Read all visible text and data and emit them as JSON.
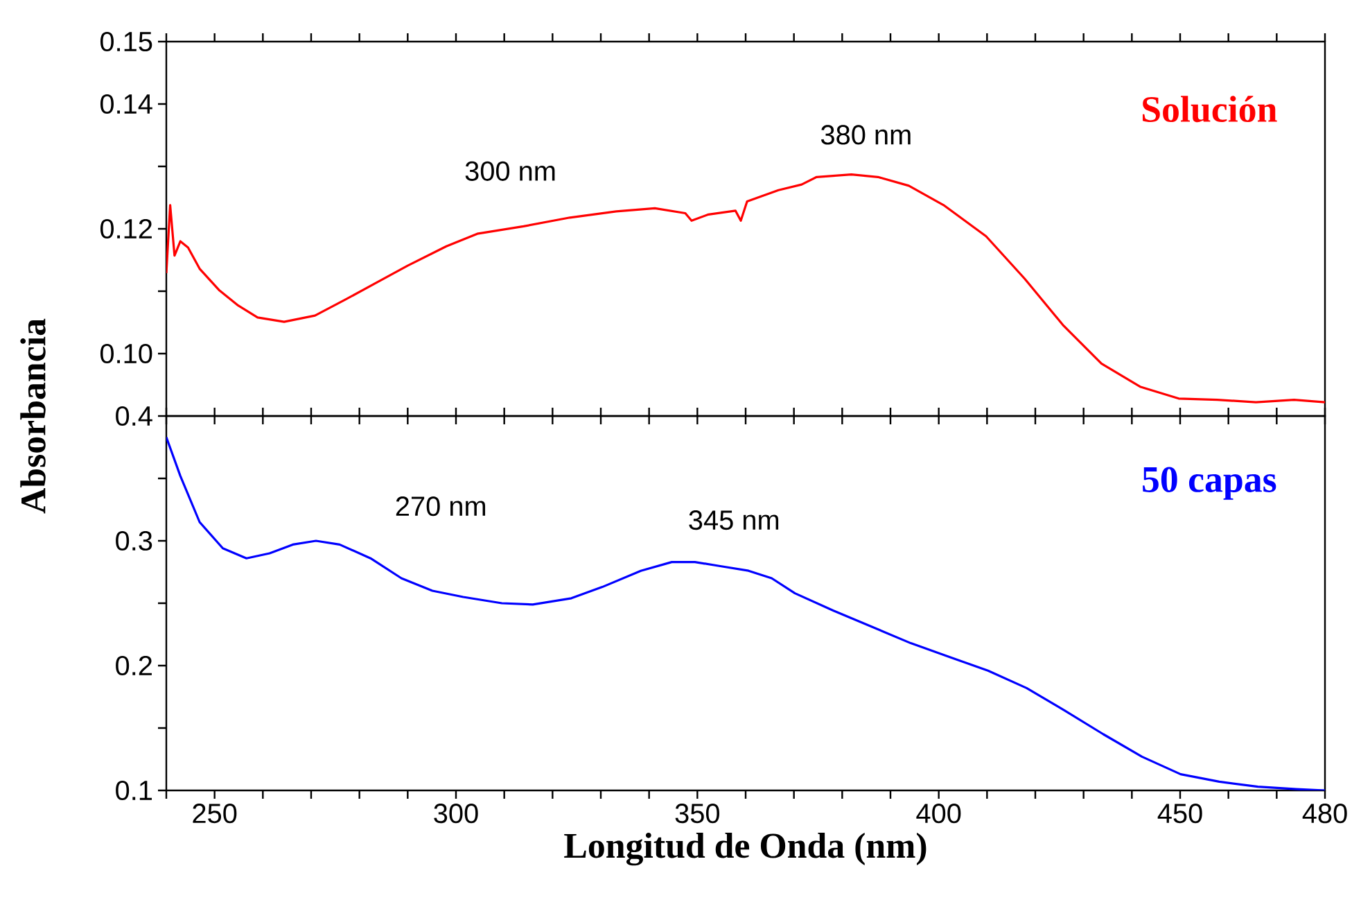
{
  "chart_data": [
    {
      "type": "line",
      "tick_labels": "y",
      "xlim": [
        240,
        480
      ],
      "xticks": [
        {
          "value": 240,
          "label": null
        },
        250,
        {
          "value": 260,
          "label": null
        },
        {
          "value": 270,
          "label": null
        },
        {
          "value": 280,
          "label": null
        },
        {
          "value": 290,
          "label": null
        },
        300,
        {
          "value": 310,
          "label": null
        },
        {
          "value": 320,
          "label": null
        },
        {
          "value": 330,
          "label": null
        },
        {
          "value": 340,
          "label": null
        },
        350,
        {
          "value": 360,
          "label": null
        },
        {
          "value": 370,
          "label": null
        },
        {
          "value": 380,
          "label": null
        },
        {
          "value": 390,
          "label": null
        },
        400,
        {
          "value": 410,
          "label": null
        },
        {
          "value": 420,
          "label": null
        },
        {
          "value": 430,
          "label": null
        },
        {
          "value": 440,
          "label": null
        },
        450,
        {
          "value": 460,
          "label": null
        },
        {
          "value": 470,
          "label": null
        },
        480
      ],
      "ylim": [
        0.09,
        0.15
      ],
      "yticks": [
        {
          "value": 0.1,
          "label": "0.10"
        },
        {
          "value": 0.11,
          "label": null
        },
        {
          "value": 0.12,
          "label": "0.12"
        },
        {
          "value": 0.13,
          "label": null
        },
        {
          "value": 0.14,
          "label": "0.14"
        },
        {
          "value": 0.15,
          "label": "0.15"
        }
      ],
      "annotations": [
        "300 nm",
        "380 nm"
      ],
      "series": [
        {
          "name": "Solución",
          "color": "#ff0000",
          "x": [
            240,
            240.8,
            241.7,
            242.9,
            244.5,
            246.9,
            250.9,
            254.9,
            258.9,
            264.4,
            270.8,
            277.2,
            283.6,
            290,
            298,
            304.4,
            314,
            323.6,
            333.2,
            341.2,
            347.5,
            348.8,
            352.3,
            357.9,
            359,
            360.3,
            366.8,
            371.6,
            374.7,
            381.9,
            387.4,
            393.8,
            401,
            409.8,
            417.8,
            425.7,
            433.7,
            441.7,
            449.7,
            457.7,
            465.7,
            473.6,
            480
          ],
          "values": [
            0.1129,
            0.1238,
            0.1157,
            0.118,
            0.117,
            0.1136,
            0.1102,
            0.1077,
            0.1058,
            0.1051,
            0.1061,
            0.1087,
            0.1114,
            0.1141,
            0.1172,
            0.1192,
            0.1204,
            0.1218,
            0.1228,
            0.1233,
            0.1225,
            0.1213,
            0.1223,
            0.1229,
            0.1213,
            0.1244,
            0.1262,
            0.1271,
            0.1283,
            0.1287,
            0.1283,
            0.1269,
            0.1238,
            0.1188,
            0.112,
            0.1046,
            0.0984,
            0.0947,
            0.0928,
            0.0926,
            0.0922,
            0.0926,
            0.0922
          ]
        }
      ]
    },
    {
      "type": "line",
      "xlim": [
        240,
        480
      ],
      "xlabel": "Longitud de Onda (nm)",
      "ylabel": "Absorbancia",
      "xticks": [
        {
          "value": 240,
          "label": null
        },
        250,
        {
          "value": 260,
          "label": null
        },
        {
          "value": 270,
          "label": null
        },
        {
          "value": 280,
          "label": null
        },
        {
          "value": 290,
          "label": null
        },
        300,
        {
          "value": 310,
          "label": null
        },
        {
          "value": 320,
          "label": null
        },
        {
          "value": 330,
          "label": null
        },
        {
          "value": 340,
          "label": null
        },
        350,
        {
          "value": 360,
          "label": null
        },
        {
          "value": 370,
          "label": null
        },
        {
          "value": 380,
          "label": null
        },
        {
          "value": 390,
          "label": null
        },
        400,
        {
          "value": 410,
          "label": null
        },
        {
          "value": 420,
          "label": null
        },
        {
          "value": 430,
          "label": null
        },
        {
          "value": 440,
          "label": null
        },
        450,
        {
          "value": 460,
          "label": null
        },
        {
          "value": 470,
          "label": null
        },
        480
      ],
      "ylim": [
        0.1,
        0.4
      ],
      "yticks": [
        0.1,
        {
          "value": 0.15,
          "label": null
        },
        0.2,
        {
          "value": 0.25,
          "label": null
        },
        0.3,
        {
          "value": 0.35,
          "label": null
        },
        0.4
      ],
      "annotations": [
        "270 nm",
        "345 nm"
      ],
      "series": [
        {
          "name": "50 capas",
          "color": "#0000ff",
          "x": [
            240,
            242.9,
            246.9,
            251.7,
            256.6,
            261.4,
            266.2,
            271,
            275.9,
            282.3,
            288.7,
            295.1,
            301.5,
            309.5,
            315.9,
            323.9,
            330.3,
            338.3,
            344.7,
            349.5,
            354.3,
            360.6,
            365.4,
            370.2,
            378.2,
            386.2,
            394.2,
            402.2,
            410.2,
            418.2,
            426.1,
            434.1,
            442.1,
            450.1,
            458.1,
            466.1,
            474.1,
            480
          ],
          "values": [
            0.383,
            0.352,
            0.315,
            0.294,
            0.286,
            0.29,
            0.297,
            0.3,
            0.297,
            0.286,
            0.27,
            0.26,
            0.255,
            0.25,
            0.249,
            0.254,
            0.263,
            0.276,
            0.283,
            0.283,
            0.28,
            0.276,
            0.27,
            0.258,
            0.244,
            0.231,
            0.218,
            0.207,
            0.196,
            0.182,
            0.164,
            0.145,
            0.127,
            0.113,
            0.107,
            0.103,
            0.101,
            0.1
          ]
        }
      ]
    }
  ]
}
